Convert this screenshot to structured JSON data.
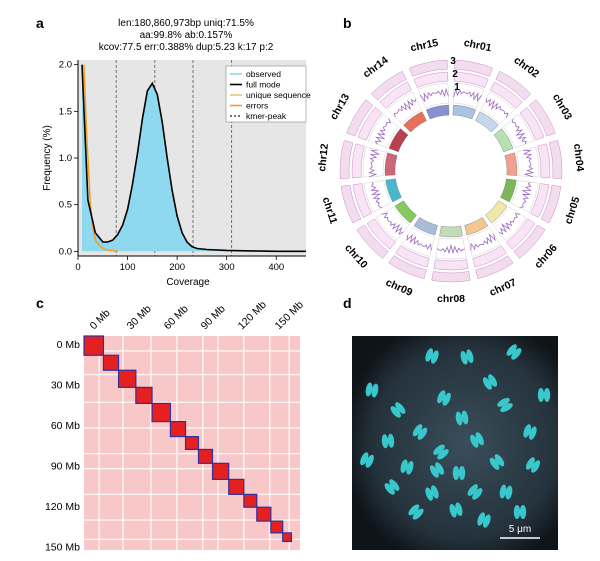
{
  "panels": {
    "a": {
      "label": "a",
      "stats": {
        "line1": "len:180,860,973bp  uniq:71.5%",
        "line2": "aa:99.8%  ab:0.157%",
        "line3": "kcov:77.5  err:0.388%  dup:5.23  k:17  p:2"
      },
      "chart_data": {
        "type": "line",
        "xlabel": "Coverage",
        "ylabel": "Frequency (%)",
        "xlim": [
          0,
          460
        ],
        "ylim": [
          -0.05,
          2.05
        ],
        "x_ticks": [
          "0",
          "100",
          "200",
          "300",
          "400"
        ],
        "y_ticks": [
          "0.0",
          "0.5",
          "1.0",
          "1.5",
          "2.0"
        ],
        "grid": false,
        "legend_position": "top-right",
        "legend": [
          {
            "name": "observed",
            "color": "#8ed8f0"
          },
          {
            "name": "full mode",
            "color": "#000000"
          },
          {
            "name": "unique sequence",
            "color": "#e6c877"
          },
          {
            "name": "errors",
            "color": "#f0a020"
          },
          {
            "name": "kmer-peak",
            "color": "#444444"
          }
        ],
        "kmer_peaks": [
          77,
          155,
          232,
          310
        ],
        "series": [
          {
            "name": "full mode",
            "x": [
              8,
              20,
              35,
              50,
              60,
              70,
              80,
              90,
              100,
              110,
              120,
              130,
              140,
              150,
              160,
              170,
              180,
              190,
              200,
              210,
              220,
              230,
              240,
              260,
              300,
              350,
              400,
              460
            ],
            "y": [
              2.0,
              0.55,
              0.2,
              0.1,
              0.1,
              0.12,
              0.18,
              0.28,
              0.45,
              0.72,
              1.05,
              1.42,
              1.72,
              1.8,
              1.68,
              1.38,
              1.0,
              0.65,
              0.38,
              0.2,
              0.1,
              0.05,
              0.03,
              0.02,
              0.01,
              0.005,
              0.0,
              0.0
            ]
          },
          {
            "name": "errors",
            "x": [
              12,
              18,
              25,
              30,
              35,
              45,
              55,
              65,
              80
            ],
            "y": [
              2.0,
              1.2,
              0.5,
              0.25,
              0.12,
              0.05,
              0.02,
              0.01,
              0.0
            ]
          }
        ]
      }
    },
    "b": {
      "label": "b",
      "track_labels": [
        "3",
        "2",
        "1"
      ],
      "chromosomes": [
        {
          "name": "chr01",
          "color": "#a9c4e2"
        },
        {
          "name": "chr02",
          "color": "#c5d7ec"
        },
        {
          "name": "chr03",
          "color": "#b8e0b0"
        },
        {
          "name": "chr04",
          "color": "#f0a090"
        },
        {
          "name": "chr05",
          "color": "#7ab85a"
        },
        {
          "name": "chr06",
          "color": "#f0e8a8"
        },
        {
          "name": "chr07",
          "color": "#f2c890"
        },
        {
          "name": "chr08",
          "color": "#c0ddb8"
        },
        {
          "name": "chr09",
          "color": "#a8bcd8"
        },
        {
          "name": "chr10",
          "color": "#88c860"
        },
        {
          "name": "chr11",
          "color": "#4ab8cc"
        },
        {
          "name": "chr12",
          "color": "#c86878"
        },
        {
          "name": "chr13",
          "color": "#b84050"
        },
        {
          "name": "chr14",
          "color": "#e8705a"
        },
        {
          "name": "chr15",
          "color": "#8890d0"
        }
      ]
    },
    "c": {
      "label": "c",
      "top_labels": [
        "0 Mb",
        "30 Mb",
        "60 Mb",
        "90 Mb",
        "120 Mb",
        "150 Mb"
      ],
      "left_labels": [
        "0 Mb",
        "30 Mb",
        "60 Mb",
        "90 Mb",
        "120 Mb",
        "150 Mb"
      ]
    },
    "d": {
      "label": "d",
      "scale_bar": "5 μm"
    }
  }
}
